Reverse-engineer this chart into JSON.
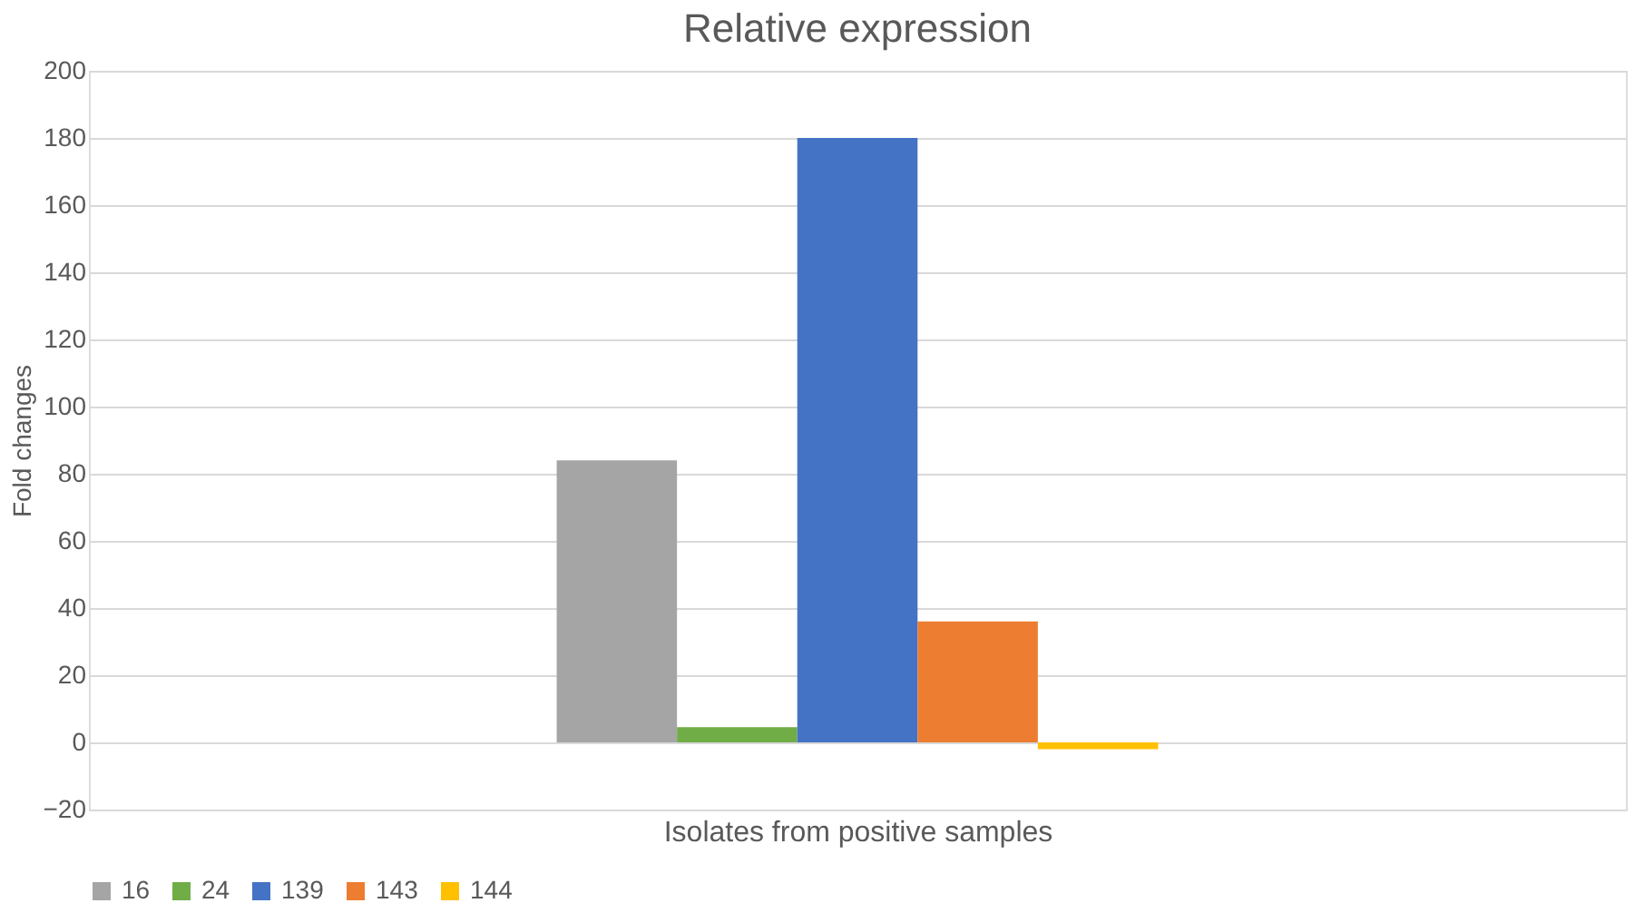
{
  "chart_data": {
    "type": "bar",
    "title": "Relative expression",
    "xlabel": "Isolates from positive samples",
    "ylabel": "Fold changes",
    "categories": [
      null
    ],
    "series": [
      {
        "name": "16",
        "color": "#a5a5a5",
        "values": [
          84
        ]
      },
      {
        "name": "24",
        "color": "#70ad47",
        "values": [
          4.5
        ]
      },
      {
        "name": "139",
        "color": "#4472c4",
        "values": [
          180
        ]
      },
      {
        "name": "143",
        "color": "#ed7d31",
        "values": [
          36
        ]
      },
      {
        "name": "144",
        "color": "#ffc000",
        "values": [
          -2
        ]
      }
    ],
    "ylim": [
      -20,
      200
    ],
    "yticks": [
      -20,
      0,
      20,
      40,
      60,
      80,
      100,
      120,
      140,
      160,
      180,
      200
    ],
    "grid": "y",
    "legend": "bottom",
    "tick_labels": "y"
  }
}
